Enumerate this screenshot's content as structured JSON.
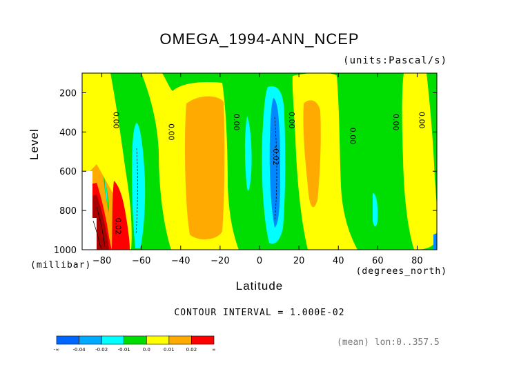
{
  "chart_data": {
    "type": "heatmap",
    "title": "OMEGA_1994-ANN_NCEP",
    "units": "(units:Pascal/s)",
    "xlabel": "Latitude",
    "x_units": "(degrees_north)",
    "ylabel": "Level",
    "y_units": "(millibar)",
    "xlim": [
      -90,
      90
    ],
    "ylim": [
      1000,
      100
    ],
    "x_ticks": [
      -80,
      -60,
      -40,
      -20,
      0,
      20,
      40,
      60,
      80
    ],
    "y_ticks": [
      200,
      400,
      600,
      800,
      1000
    ],
    "contour_interval_text": "CONTOUR INTERVAL = 1.000E-02",
    "mean_text": "(mean) lon:0..357.5",
    "contour_labels": [
      {
        "text": "0.00",
        "lat": -74,
        "level": 340
      },
      {
        "text": "0.00",
        "lat": -46,
        "level": 400
      },
      {
        "text": "0.00",
        "lat": -13,
        "level": 350
      },
      {
        "text": "0.00",
        "lat": 15,
        "level": 340
      },
      {
        "text": "-0.02",
        "lat": 7,
        "level": 520
      },
      {
        "text": "0.00",
        "lat": 46,
        "level": 420
      },
      {
        "text": "0.00",
        "lat": 68,
        "level": 350
      },
      {
        "text": "0.00",
        "lat": 81,
        "level": 340
      },
      {
        "text": "0.02",
        "lat": -73,
        "level": 880
      }
    ],
    "colorbar": {
      "colors": [
        "#0066ff",
        "#00aaff",
        "#00ffff",
        "#00dd00",
        "#ffff00",
        "#ffaa00",
        "#ff0000"
      ],
      "labels": [
        "-∞",
        "-0.04",
        "-0.02",
        "-0.01",
        "0.0",
        "0.01",
        "0.02",
        "∞"
      ]
    }
  }
}
